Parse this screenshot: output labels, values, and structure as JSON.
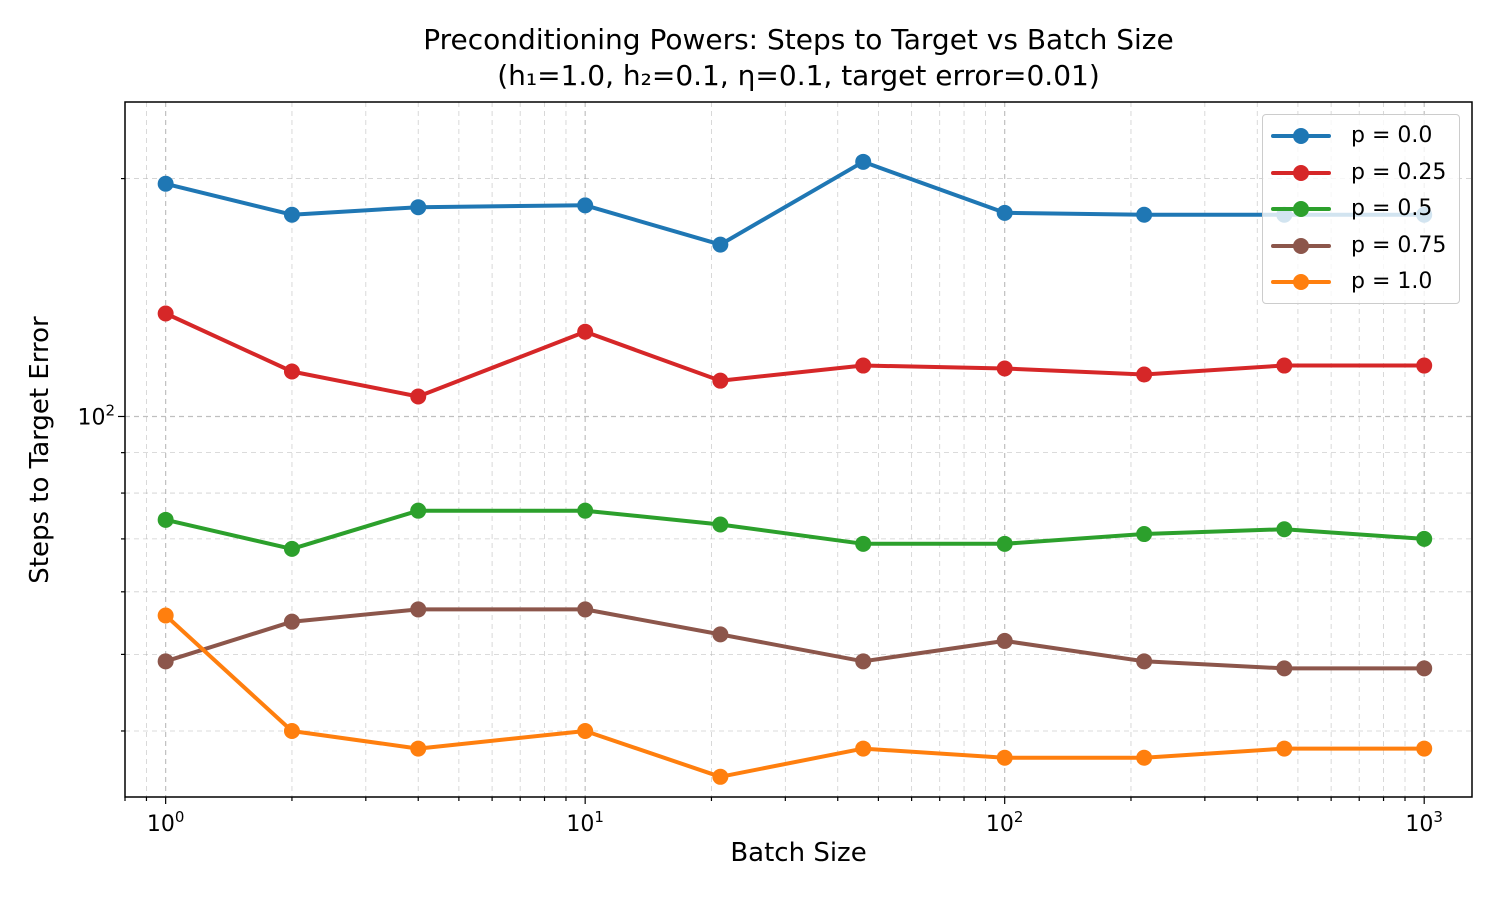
{
  "chart_data": {
    "type": "line",
    "title": "Preconditioning Powers: Steps to Target vs Batch Size",
    "subtitle": "(h₁=1.0, h₂=0.1, η=0.1, target error=0.01)",
    "xlabel": "Batch Size",
    "ylabel": "Steps to Target Error",
    "x_scale": "log",
    "y_scale": "log",
    "xlim": [
      0.8,
      1300
    ],
    "ylim": [
      33,
      250
    ],
    "x_ticks": [
      {
        "value": 1,
        "base": "10",
        "exp": "0"
      },
      {
        "value": 10,
        "base": "10",
        "exp": "1"
      },
      {
        "value": 100,
        "base": "10",
        "exp": "2"
      },
      {
        "value": 1000,
        "base": "10",
        "exp": "3"
      }
    ],
    "y_ticks": [
      {
        "value": 100,
        "base": "10",
        "exp": "2"
      }
    ],
    "grid": true,
    "legend_position": "top-right",
    "x": [
      1,
      2,
      4,
      10,
      21,
      46,
      100,
      215,
      464,
      1000
    ],
    "series": [
      {
        "name": "p = 0.0",
        "color": "#1f77b4",
        "values": [
          197,
          180,
          184,
          185,
          165,
          210,
          181,
          180,
          180,
          180
        ]
      },
      {
        "name": "p = 0.25",
        "color": "#d62728",
        "values": [
          135,
          114,
          106,
          128,
          111,
          116,
          115,
          113,
          116,
          116
        ]
      },
      {
        "name": "p = 0.5",
        "color": "#2ca02c",
        "values": [
          74,
          68,
          76,
          76,
          73,
          69,
          69,
          71,
          72,
          70
        ]
      },
      {
        "name": "p = 0.75",
        "color": "#8c564b",
        "values": [
          49,
          55,
          57,
          57,
          53,
          49,
          52,
          49,
          48,
          48
        ]
      },
      {
        "name": "p = 1.0",
        "color": "#ff7f0e",
        "values": [
          56,
          40,
          38,
          40,
          35,
          38,
          37,
          37,
          38,
          38
        ]
      }
    ]
  }
}
